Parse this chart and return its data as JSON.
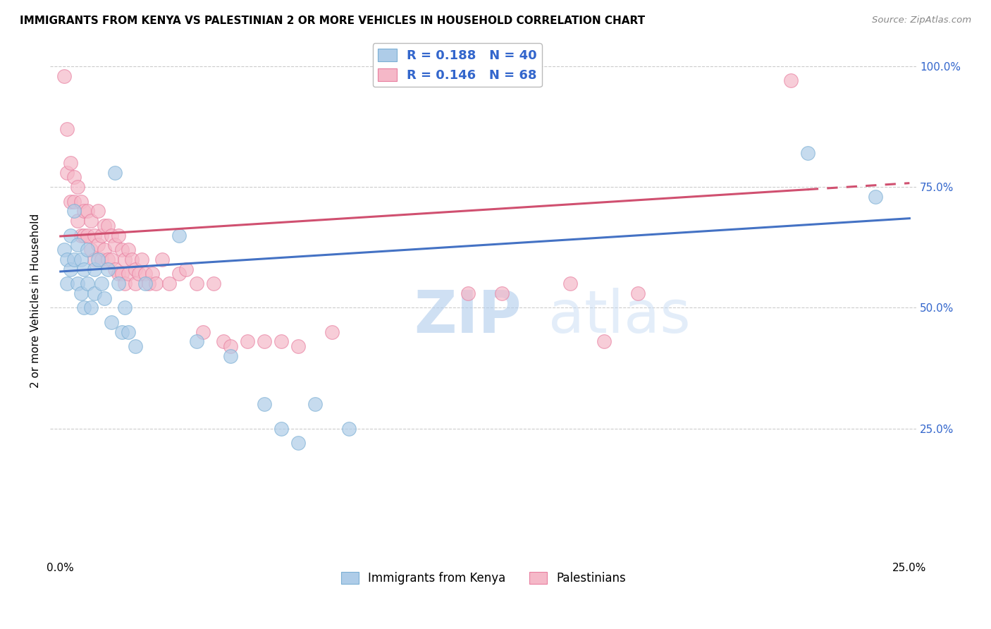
{
  "title": "IMMIGRANTS FROM KENYA VS PALESTINIAN 2 OR MORE VEHICLES IN HOUSEHOLD CORRELATION CHART",
  "source": "Source: ZipAtlas.com",
  "ylabel": "2 or more Vehicles in Household",
  "xlim": [
    0.0,
    0.25
  ],
  "ylim": [
    0.0,
    1.0
  ],
  "grid_color": "#cccccc",
  "kenya_color": "#aecce8",
  "kenya_edge_color": "#7bafd4",
  "palestinian_color": "#f5b8c8",
  "palestinian_edge_color": "#e87fa0",
  "kenya_line_color": "#4472c4",
  "palestinian_line_color": "#d05070",
  "legend_text_color": "#3366cc",
  "watermark_color": "#c8ddf0",
  "kenya_line_y0": 0.575,
  "kenya_line_y1": 0.685,
  "palestinian_line_y0": 0.648,
  "palestinian_line_y1": 0.758,
  "kenya_points": [
    [
      0.001,
      0.62
    ],
    [
      0.002,
      0.6
    ],
    [
      0.002,
      0.55
    ],
    [
      0.003,
      0.65
    ],
    [
      0.003,
      0.58
    ],
    [
      0.004,
      0.7
    ],
    [
      0.004,
      0.6
    ],
    [
      0.005,
      0.63
    ],
    [
      0.005,
      0.55
    ],
    [
      0.006,
      0.6
    ],
    [
      0.006,
      0.53
    ],
    [
      0.007,
      0.58
    ],
    [
      0.007,
      0.5
    ],
    [
      0.008,
      0.62
    ],
    [
      0.008,
      0.55
    ],
    [
      0.009,
      0.5
    ],
    [
      0.01,
      0.58
    ],
    [
      0.01,
      0.53
    ],
    [
      0.011,
      0.6
    ],
    [
      0.012,
      0.55
    ],
    [
      0.013,
      0.52
    ],
    [
      0.014,
      0.58
    ],
    [
      0.015,
      0.47
    ],
    [
      0.016,
      0.78
    ],
    [
      0.017,
      0.55
    ],
    [
      0.018,
      0.45
    ],
    [
      0.019,
      0.5
    ],
    [
      0.02,
      0.45
    ],
    [
      0.022,
      0.42
    ],
    [
      0.025,
      0.55
    ],
    [
      0.035,
      0.65
    ],
    [
      0.04,
      0.43
    ],
    [
      0.05,
      0.4
    ],
    [
      0.06,
      0.3
    ],
    [
      0.065,
      0.25
    ],
    [
      0.07,
      0.22
    ],
    [
      0.075,
      0.3
    ],
    [
      0.085,
      0.25
    ],
    [
      0.22,
      0.82
    ],
    [
      0.24,
      0.73
    ]
  ],
  "palestinian_points": [
    [
      0.001,
      0.98
    ],
    [
      0.002,
      0.87
    ],
    [
      0.002,
      0.78
    ],
    [
      0.003,
      0.8
    ],
    [
      0.003,
      0.72
    ],
    [
      0.004,
      0.77
    ],
    [
      0.004,
      0.72
    ],
    [
      0.005,
      0.75
    ],
    [
      0.005,
      0.68
    ],
    [
      0.006,
      0.72
    ],
    [
      0.006,
      0.65
    ],
    [
      0.007,
      0.7
    ],
    [
      0.007,
      0.65
    ],
    [
      0.008,
      0.7
    ],
    [
      0.008,
      0.65
    ],
    [
      0.009,
      0.68
    ],
    [
      0.009,
      0.62
    ],
    [
      0.01,
      0.65
    ],
    [
      0.01,
      0.6
    ],
    [
      0.011,
      0.7
    ],
    [
      0.011,
      0.63
    ],
    [
      0.012,
      0.65
    ],
    [
      0.012,
      0.6
    ],
    [
      0.013,
      0.67
    ],
    [
      0.013,
      0.62
    ],
    [
      0.014,
      0.67
    ],
    [
      0.014,
      0.6
    ],
    [
      0.015,
      0.65
    ],
    [
      0.015,
      0.6
    ],
    [
      0.016,
      0.63
    ],
    [
      0.016,
      0.58
    ],
    [
      0.017,
      0.65
    ],
    [
      0.017,
      0.57
    ],
    [
      0.018,
      0.62
    ],
    [
      0.018,
      0.57
    ],
    [
      0.019,
      0.6
    ],
    [
      0.019,
      0.55
    ],
    [
      0.02,
      0.62
    ],
    [
      0.02,
      0.57
    ],
    [
      0.021,
      0.6
    ],
    [
      0.022,
      0.58
    ],
    [
      0.022,
      0.55
    ],
    [
      0.023,
      0.57
    ],
    [
      0.024,
      0.6
    ],
    [
      0.025,
      0.57
    ],
    [
      0.026,
      0.55
    ],
    [
      0.027,
      0.57
    ],
    [
      0.028,
      0.55
    ],
    [
      0.03,
      0.6
    ],
    [
      0.032,
      0.55
    ],
    [
      0.035,
      0.57
    ],
    [
      0.037,
      0.58
    ],
    [
      0.04,
      0.55
    ],
    [
      0.042,
      0.45
    ],
    [
      0.045,
      0.55
    ],
    [
      0.048,
      0.43
    ],
    [
      0.05,
      0.42
    ],
    [
      0.055,
      0.43
    ],
    [
      0.06,
      0.43
    ],
    [
      0.065,
      0.43
    ],
    [
      0.07,
      0.42
    ],
    [
      0.08,
      0.45
    ],
    [
      0.12,
      0.53
    ],
    [
      0.13,
      0.53
    ],
    [
      0.15,
      0.55
    ],
    [
      0.16,
      0.43
    ],
    [
      0.17,
      0.53
    ],
    [
      0.215,
      0.97
    ]
  ]
}
